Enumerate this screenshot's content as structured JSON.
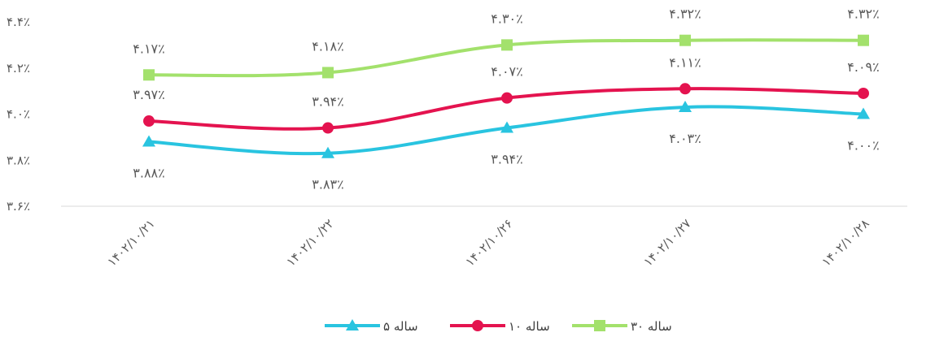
{
  "chart_data": {
    "type": "line",
    "title": "",
    "xlabel": "",
    "ylabel": "",
    "categories": [
      "۱۴۰۲/۱۰/۲۱",
      "۱۴۰۲/۱۰/۲۲",
      "۱۴۰۲/۱۰/۲۶",
      "۱۴۰۲/۱۰/۲۷",
      "۱۴۰۲/۱۰/۲۸"
    ],
    "ylim": [
      3.6,
      4.4
    ],
    "yticks": [
      3.6,
      3.8,
      4.0,
      4.2,
      4.4
    ],
    "ytick_labels": [
      "۳.۶٪",
      "۳.۸٪",
      "۴.۰٪",
      "۴.۲٪",
      "۴.۴٪"
    ],
    "grid": false,
    "legend_position": "bottom",
    "series": [
      {
        "name": "۳۰ ساله",
        "color": "#a3e16c",
        "marker": "square",
        "values": [
          4.17,
          4.18,
          4.3,
          4.32,
          4.32
        ],
        "labels": [
          "۴.۱۷٪",
          "۴.۱۸٪",
          "۴.۳۰٪",
          "۴.۳۲٪",
          "۴.۳۲٪"
        ],
        "label_position": "above"
      },
      {
        "name": "۱۰ ساله",
        "color": "#e4134f",
        "marker": "circle",
        "values": [
          3.97,
          3.94,
          4.07,
          4.11,
          4.09
        ],
        "labels": [
          "۳.۹۷٪",
          "۳.۹۴٪",
          "۴.۰۷٪",
          "۴.۱۱٪",
          "۴.۰۹٪"
        ],
        "label_position": "above"
      },
      {
        "name": "۵ ساله",
        "color": "#29c4e0",
        "marker": "triangle",
        "values": [
          3.88,
          3.83,
          3.94,
          4.03,
          4.0
        ],
        "labels": [
          "۳.۸۸٪",
          "۳.۸۳٪",
          "۳.۹۴٪",
          "۴.۰۳٪",
          "۴.۰۰٪"
        ],
        "label_position": "below"
      }
    ]
  }
}
